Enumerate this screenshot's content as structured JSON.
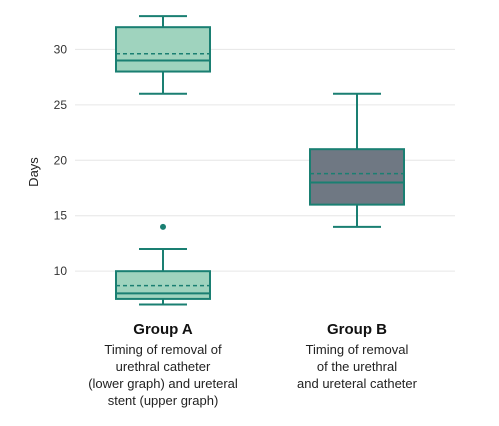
{
  "chart_data": {
    "type": "box",
    "ylabel": "Days",
    "ylim": [
      6.5,
      34
    ],
    "yticks": [
      10,
      15,
      20,
      25,
      30
    ],
    "grid": true,
    "groups": [
      {
        "label": "Group A",
        "description": [
          "Timing of removal of",
          "urethral catheter",
          "(lower graph) and ureteral",
          "stent (upper graph)"
        ],
        "boxes": [
          {
            "min": 26,
            "q1": 28,
            "median": 29,
            "mean": 29.6,
            "q3": 32,
            "max": 33,
            "outliers": [],
            "fill": "#9fd3be"
          },
          {
            "min": 7,
            "q1": 7.5,
            "median": 8,
            "mean": 8.7,
            "q3": 10,
            "max": 12,
            "outliers": [
              14
            ],
            "fill": "#9fd3be"
          }
        ]
      },
      {
        "label": "Group B",
        "description": [
          "Timing of removal",
          "of the urethral",
          "and ureteral catheter"
        ],
        "boxes": [
          {
            "min": 14,
            "q1": 16,
            "median": 18,
            "mean": 18.8,
            "q3": 21,
            "max": 26,
            "outliers": [],
            "fill": "#6f7883"
          }
        ]
      }
    ],
    "colors": {
      "stroke": "#1a7f72",
      "grid": "#e6e6e6"
    }
  }
}
